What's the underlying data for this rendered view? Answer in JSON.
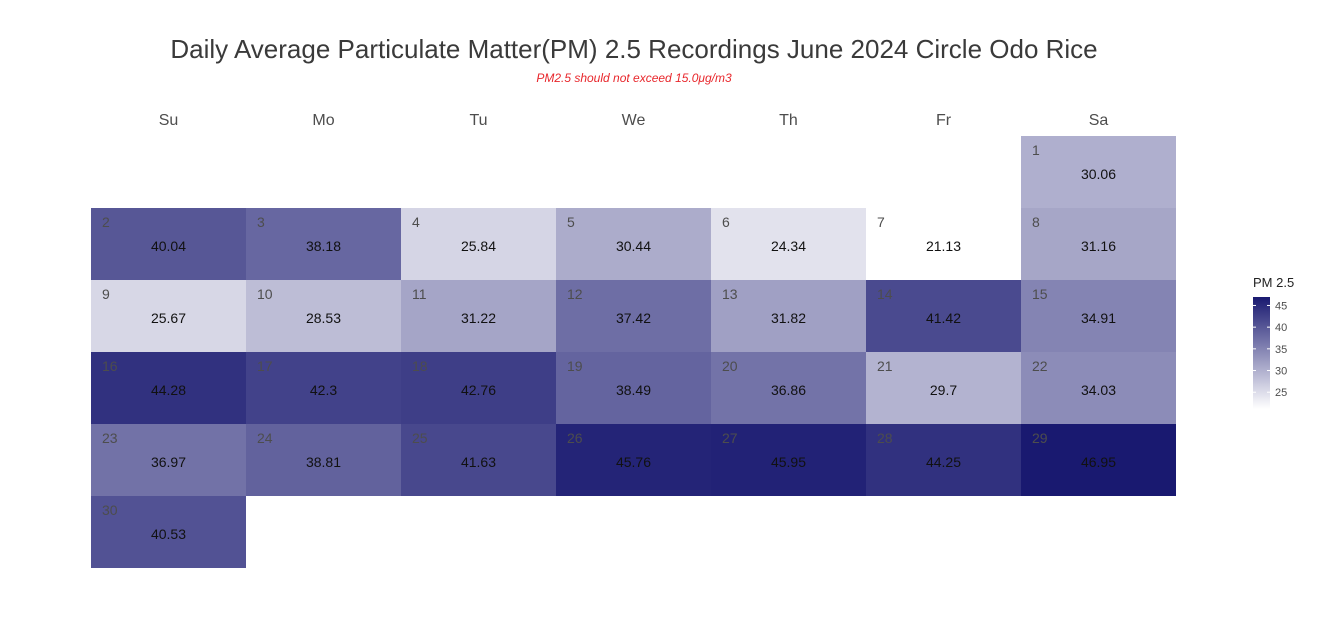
{
  "chart_data": {
    "type": "heatmap",
    "title": "Daily Average Particulate Matter(PM) 2.5 Recordings June 2024 Circle Odo Rice",
    "subtitle": "PM2.5 should not exceed 15.0μg/m3",
    "weekdays": [
      "Su",
      "Mo",
      "Tu",
      "We",
      "Th",
      "Fr",
      "Sa"
    ],
    "first_weekday_index": 6,
    "days": [
      1,
      2,
      3,
      4,
      5,
      6,
      7,
      8,
      9,
      10,
      11,
      12,
      13,
      14,
      15,
      16,
      17,
      18,
      19,
      20,
      21,
      22,
      23,
      24,
      25,
      26,
      27,
      28,
      29,
      30
    ],
    "values": [
      30.06,
      40.04,
      38.18,
      25.84,
      30.44,
      24.34,
      21.13,
      31.16,
      25.67,
      28.53,
      31.22,
      37.42,
      31.82,
      41.42,
      34.91,
      44.28,
      42.3,
      42.76,
      38.49,
      36.86,
      29.7,
      34.03,
      36.97,
      38.81,
      41.63,
      45.76,
      45.95,
      44.25,
      46.95,
      40.53
    ],
    "value_labels": [
      "30.06",
      "40.04",
      "38.18",
      "25.84",
      "30.44",
      "24.34",
      "21.13",
      "31.16",
      "25.67",
      "28.53",
      "31.22",
      "37.42",
      "31.82",
      "41.42",
      "34.91",
      "44.28",
      "42.3",
      "42.76",
      "38.49",
      "36.86",
      "29.7",
      "34.03",
      "36.97",
      "38.81",
      "41.63",
      "45.76",
      "45.95",
      "44.25",
      "46.95",
      "40.53"
    ],
    "legend": {
      "title": "PM 2.5",
      "ticks": [
        25,
        30,
        35,
        40,
        45
      ],
      "range": [
        21.13,
        46.95
      ],
      "low_color": "#ffffff",
      "high_color": "#191970",
      "placement": "right"
    }
  }
}
